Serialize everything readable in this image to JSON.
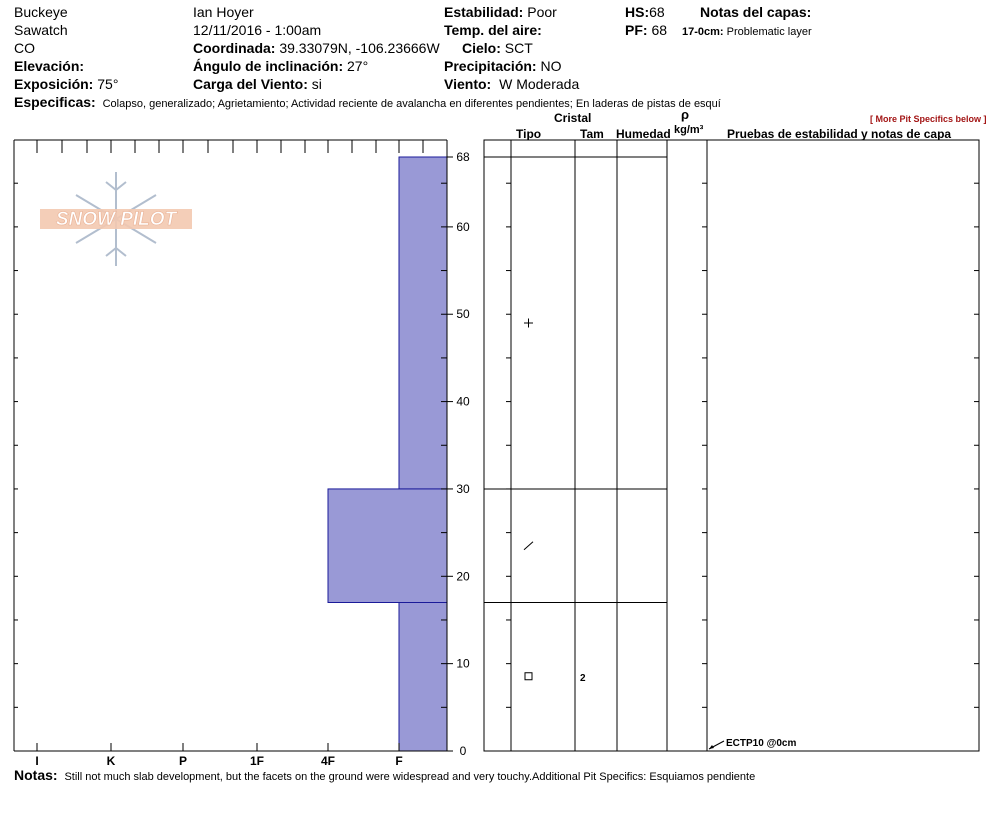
{
  "header": {
    "location": "Buckeye",
    "range": "Sawatch",
    "state": "CO",
    "observer": "Ian Hoyer",
    "datetime": "12/11/2016 - 1:00am",
    "coordinate_label": "Coordinada:",
    "coordinate_value": "39.33079N, -106.23666W",
    "elevation_label": "Elevación:",
    "exposure_label": "Exposición:",
    "exposure_value": "75°",
    "incline_label": "Ángulo de inclinación:",
    "incline_value": "27°",
    "wind_load_label": "Carga del Viento:",
    "wind_load_value": "si",
    "stability_label": "Estabilidad:",
    "stability_value": "Poor",
    "air_temp_label": "Temp. del aire:",
    "sky_label": "Cielo:",
    "sky_value": "SCT",
    "precip_label": "Precipitación:",
    "precip_value": "NO",
    "wind_label": "Viento:",
    "wind_value": "W Moderada",
    "hs_label": "HS:",
    "hs_value": "68",
    "pf_label": "PF:",
    "pf_value": "68",
    "layer_notes_label": "Notas del capas:",
    "layer_note_depth": "17-0cm:",
    "layer_note_text": "Problematic layer",
    "specifics_label": "Especificas:",
    "specifics_text": "Colapso, generalizado;  Agrietamiento;  Actividad reciente de avalancha en diferentes pendientes;  En laderas de pistas de esquí",
    "more_specifics": "[ More Pit Specifics below ]"
  },
  "columns": {
    "cristal": "Cristal",
    "tipo": "Tipo",
    "tam": "Tam",
    "humedad": "Humedad",
    "rho": "ρ",
    "density_unit": "kg/m³",
    "tests": "Pruebas de estabilidad y notas de capa"
  },
  "notes": {
    "label": "Notas:",
    "text": "Still not much slab development, but the facets on the ground were widespread and very touchy.Additional Pit Specifics: Esquiamos pendiente"
  },
  "logo_text": "SNOW PILOT",
  "colors": {
    "hardness_fill": "#9999d6",
    "hardness_stroke": "#1a1a99",
    "logo": "#f2c3a8"
  },
  "chart_data": {
    "type": "bar",
    "title": "",
    "xlabel": "",
    "ylabel": "",
    "hardness_categories": [
      "I",
      "K",
      "P",
      "1F",
      "4F",
      "F"
    ],
    "y_ticks": [
      "0",
      "10",
      "20",
      "30",
      "40",
      "50",
      "60",
      "68"
    ],
    "ylim": [
      0,
      68
    ],
    "layers": [
      {
        "top": 68,
        "bottom": 30,
        "hardness": "F"
      },
      {
        "top": 30,
        "bottom": 17,
        "hardness": "4F"
      },
      {
        "top": 17,
        "bottom": 0,
        "hardness": "F"
      }
    ],
    "crystal_symbols": [
      {
        "depth": 49,
        "symbol": "+"
      },
      {
        "depth": 23.5,
        "symbol": "/"
      },
      {
        "depth": 8.5,
        "symbol": "□"
      }
    ],
    "crystal_sizes": [
      {
        "depth": 8.5,
        "value": "2"
      }
    ],
    "stability_tests": [
      {
        "depth": 0,
        "label": "ECTP10 @0cm"
      }
    ]
  }
}
